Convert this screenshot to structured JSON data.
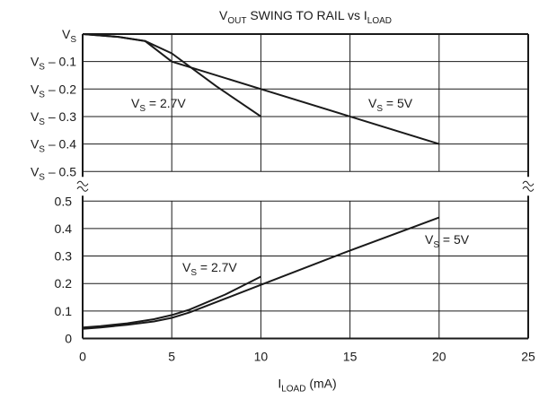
{
  "chart_data": {
    "type": "line",
    "title": {
      "main": "V",
      "main_sub": "OUT",
      "rest": " SWING TO RAIL vs I",
      "rest_sub": "LOAD"
    },
    "xlabel": {
      "main": "I",
      "sub": "LOAD",
      "rest": " (mA)"
    },
    "x_ticks": [
      "0",
      "5",
      "10",
      "15",
      "20",
      "25"
    ],
    "xlim": [
      0,
      25
    ],
    "grid": true,
    "upper_panel": {
      "quantity": "output swing from positive rail",
      "y_ticks": [
        {
          "main": "V",
          "sub": "S",
          "rest": ""
        },
        {
          "main": "V",
          "sub": "S",
          "rest": " – 0.1"
        },
        {
          "main": "V",
          "sub": "S",
          "rest": " – 0.2"
        },
        {
          "main": "V",
          "sub": "S",
          "rest": " – 0.3"
        },
        {
          "main": "V",
          "sub": "S",
          "rest": " – 0.4"
        },
        {
          "main": "V",
          "sub": "S",
          "rest": " – 0.5"
        }
      ],
      "ylim": [
        0,
        0.5
      ],
      "series": [
        {
          "name": "VS = 2.7V",
          "label": {
            "main": "V",
            "sub": "S",
            "rest": " = 2.7V"
          },
          "x": [
            0,
            2,
            3.5,
            5,
            7.5,
            10
          ],
          "y": [
            0,
            0.01,
            0.025,
            0.07,
            0.19,
            0.3
          ]
        },
        {
          "name": "VS = 5V",
          "label": {
            "main": "V",
            "sub": "S",
            "rest": " = 5V"
          },
          "x": [
            0,
            2,
            3.5,
            5,
            10,
            15,
            20
          ],
          "y": [
            0,
            0.01,
            0.025,
            0.1,
            0.2,
            0.3,
            0.4
          ]
        }
      ]
    },
    "lower_panel": {
      "quantity": "output swing from negative rail",
      "y_ticks": [
        "0.5",
        "0.4",
        "0.3",
        "0.2",
        "0.1",
        "0"
      ],
      "ylim": [
        0,
        0.5
      ],
      "series": [
        {
          "name": "VS = 2.7V",
          "label": {
            "main": "V",
            "sub": "S",
            "rest": " = 2.7V"
          },
          "x": [
            0,
            1,
            2.5,
            4,
            5,
            6,
            8,
            10
          ],
          "y": [
            0.04,
            0.045,
            0.055,
            0.07,
            0.085,
            0.105,
            0.16,
            0.225
          ]
        },
        {
          "name": "VS = 5V",
          "label": {
            "main": "V",
            "sub": "S",
            "rest": " = 5V"
          },
          "x": [
            0,
            1,
            2.5,
            4,
            5,
            6,
            8,
            10,
            15,
            20
          ],
          "y": [
            0.035,
            0.04,
            0.05,
            0.062,
            0.075,
            0.095,
            0.145,
            0.195,
            0.32,
            0.44
          ]
        }
      ]
    },
    "axis_break_marks": true
  }
}
